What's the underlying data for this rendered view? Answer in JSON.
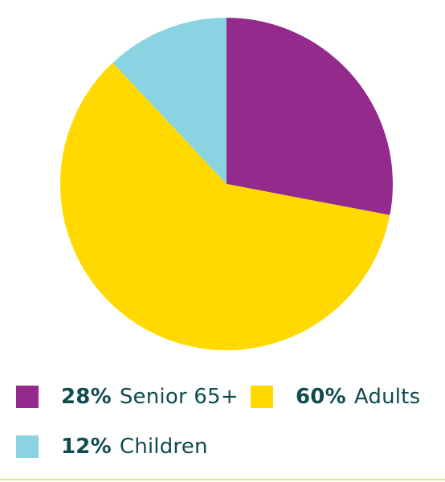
{
  "chart_data": {
    "type": "pie",
    "slices": [
      {
        "pct_label": "28%",
        "label": "Senior 65+",
        "value": 28,
        "color": "#932a8c"
      },
      {
        "pct_label": "60%",
        "label": "Adults",
        "value": 60,
        "color": "#ffd900"
      },
      {
        "pct_label": "12%",
        "label": "Children",
        "value": 12,
        "color": "#8ad3e3"
      }
    ],
    "start_angle": "12 o'clock",
    "direction": "clockwise",
    "legend_position": "bottom"
  }
}
